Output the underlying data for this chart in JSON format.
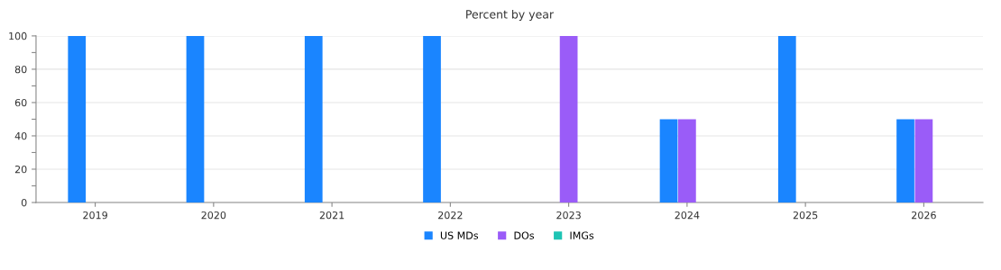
{
  "chart_data": {
    "type": "bar",
    "title": "Percent by year",
    "categories": [
      "2019",
      "2020",
      "2021",
      "2022",
      "2023",
      "2024",
      "2025",
      "2026"
    ],
    "series": [
      {
        "name": "US MDs",
        "color": "#1a85ff",
        "values": [
          100,
          100,
          100,
          100,
          0,
          50,
          100,
          50
        ]
      },
      {
        "name": "DOs",
        "color": "#9a5cf8",
        "values": [
          0,
          0,
          0,
          0,
          100,
          50,
          0,
          50
        ]
      },
      {
        "name": "IMGs",
        "color": "#1fc4b4",
        "values": [
          0,
          0,
          0,
          0,
          0,
          0,
          0,
          0
        ]
      }
    ],
    "ylim": [
      0,
      100
    ],
    "yticks": [
      0,
      {
        "value": 10,
        "label": null
      },
      20,
      {
        "value": 30,
        "label": null
      },
      40,
      {
        "value": 50,
        "label": null
      },
      60,
      {
        "value": 70,
        "label": null
      },
      80,
      {
        "value": 90,
        "label": null
      },
      100
    ],
    "grid": "y",
    "legend": "bottom"
  }
}
